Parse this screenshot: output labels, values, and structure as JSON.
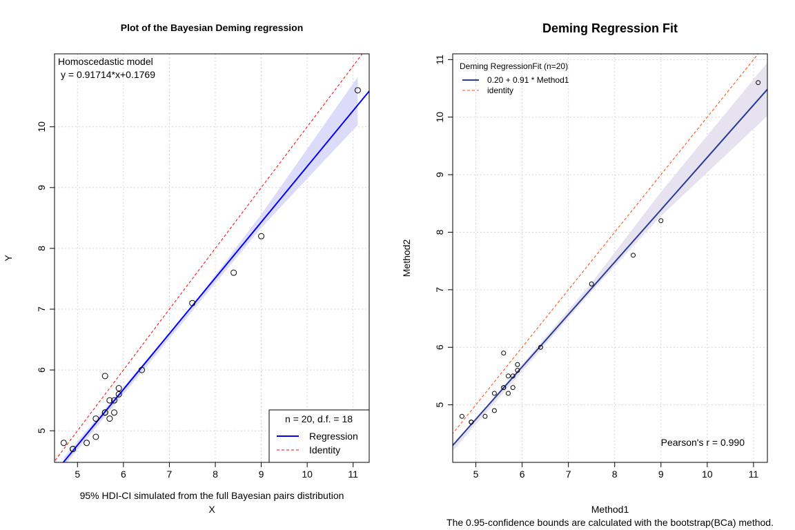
{
  "chart_data": [
    {
      "type": "scatter",
      "title": "Plot of the Bayesian Deming regression",
      "xlabel": "X",
      "ylabel": "Y",
      "subtitle": "95% HDI-CI simulated from the full Bayesian pairs distribution",
      "xlim": [
        4.5,
        11.35
      ],
      "ylim": [
        4.48,
        11.2
      ],
      "xticks": [
        5,
        6,
        7,
        8,
        9,
        10,
        11
      ],
      "yticks": [
        5,
        6,
        7,
        8,
        9,
        10
      ],
      "grid": true,
      "annotations": [
        "Homoscedastic model",
        "y = 0.91714*x+0.1769"
      ],
      "regression": {
        "slope": 0.91714,
        "intercept": 0.1769,
        "color": "#0000ff"
      },
      "identity": {
        "slope": 1,
        "intercept": 0,
        "color": "#ff0000"
      },
      "ci_band": {
        "color": "#dcdcfa",
        "x": [
          4.7,
          6.0,
          7.5,
          9.0,
          11.1
        ],
        "lower": [
          4.41,
          5.6,
          6.97,
          8.34,
          10.03
        ],
        "upper": [
          4.56,
          5.72,
          7.06,
          8.56,
          10.82
        ]
      },
      "points": {
        "x": [
          4.7,
          4.9,
          4.9,
          5.2,
          5.4,
          5.4,
          5.6,
          5.6,
          5.6,
          5.7,
          5.7,
          5.8,
          5.8,
          5.9,
          5.9,
          6.4,
          7.5,
          8.4,
          9.0,
          11.1
        ],
        "y": [
          4.8,
          4.7,
          4.7,
          4.8,
          4.9,
          5.2,
          5.3,
          5.3,
          5.9,
          5.2,
          5.5,
          5.3,
          5.5,
          5.6,
          5.7,
          6.0,
          7.1,
          7.6,
          8.2,
          10.6
        ]
      },
      "legend": {
        "position": "bottom-right",
        "title": "n = 20, d.f. = 18",
        "entries": [
          {
            "label": "Regression",
            "color": "#0000ff",
            "style": "solid"
          },
          {
            "label": "Identity",
            "color": "#ff0000",
            "style": "dashed"
          }
        ]
      }
    },
    {
      "type": "scatter",
      "title": "Deming Regression Fit",
      "xlabel": "Method1",
      "ylabel": "Method2",
      "subtitle": "The 0.95-confidence bounds are calculated with the bootstrap(BCa) method.",
      "xlim": [
        4.5,
        11.3
      ],
      "ylim": [
        4.0,
        11.1
      ],
      "xticks": [
        5,
        6,
        7,
        8,
        9,
        10,
        11
      ],
      "yticks": [
        5,
        6,
        7,
        8,
        9,
        10,
        11
      ],
      "grid": true,
      "annotations": [
        "Pearson's r = 0.990"
      ],
      "regression": {
        "slope": 0.91,
        "intercept": 0.2,
        "color": "#283c96"
      },
      "identity": {
        "slope": 1,
        "intercept": 0,
        "color": "#ff4500"
      },
      "ci_band": {
        "color": "#e6e2f0",
        "x": [
          4.5,
          6.0,
          7.5,
          9.0,
          11.3
        ],
        "lower": [
          4.2,
          5.58,
          6.97,
          8.28,
          10.02
        ],
        "upper": [
          4.29,
          5.7,
          7.12,
          8.7,
          10.95
        ]
      },
      "points": {
        "x": [
          4.7,
          4.9,
          4.9,
          5.2,
          5.4,
          5.4,
          5.6,
          5.6,
          5.6,
          5.7,
          5.7,
          5.8,
          5.8,
          5.9,
          5.9,
          6.4,
          7.5,
          8.4,
          9.0,
          11.1
        ],
        "y": [
          4.8,
          4.7,
          4.7,
          4.8,
          4.9,
          5.2,
          5.3,
          5.3,
          5.9,
          5.2,
          5.5,
          5.3,
          5.5,
          5.6,
          5.7,
          6.0,
          7.1,
          7.6,
          8.2,
          10.6
        ]
      },
      "legend": {
        "position": "top-left",
        "title": "Deming RegressionFit (n=20)",
        "entries": [
          {
            "label": "0.20 + 0.91 * Method1",
            "color": "#283c96",
            "style": "solid"
          },
          {
            "label": "identity",
            "color": "#ff4500",
            "style": "dashed"
          }
        ]
      }
    }
  ]
}
